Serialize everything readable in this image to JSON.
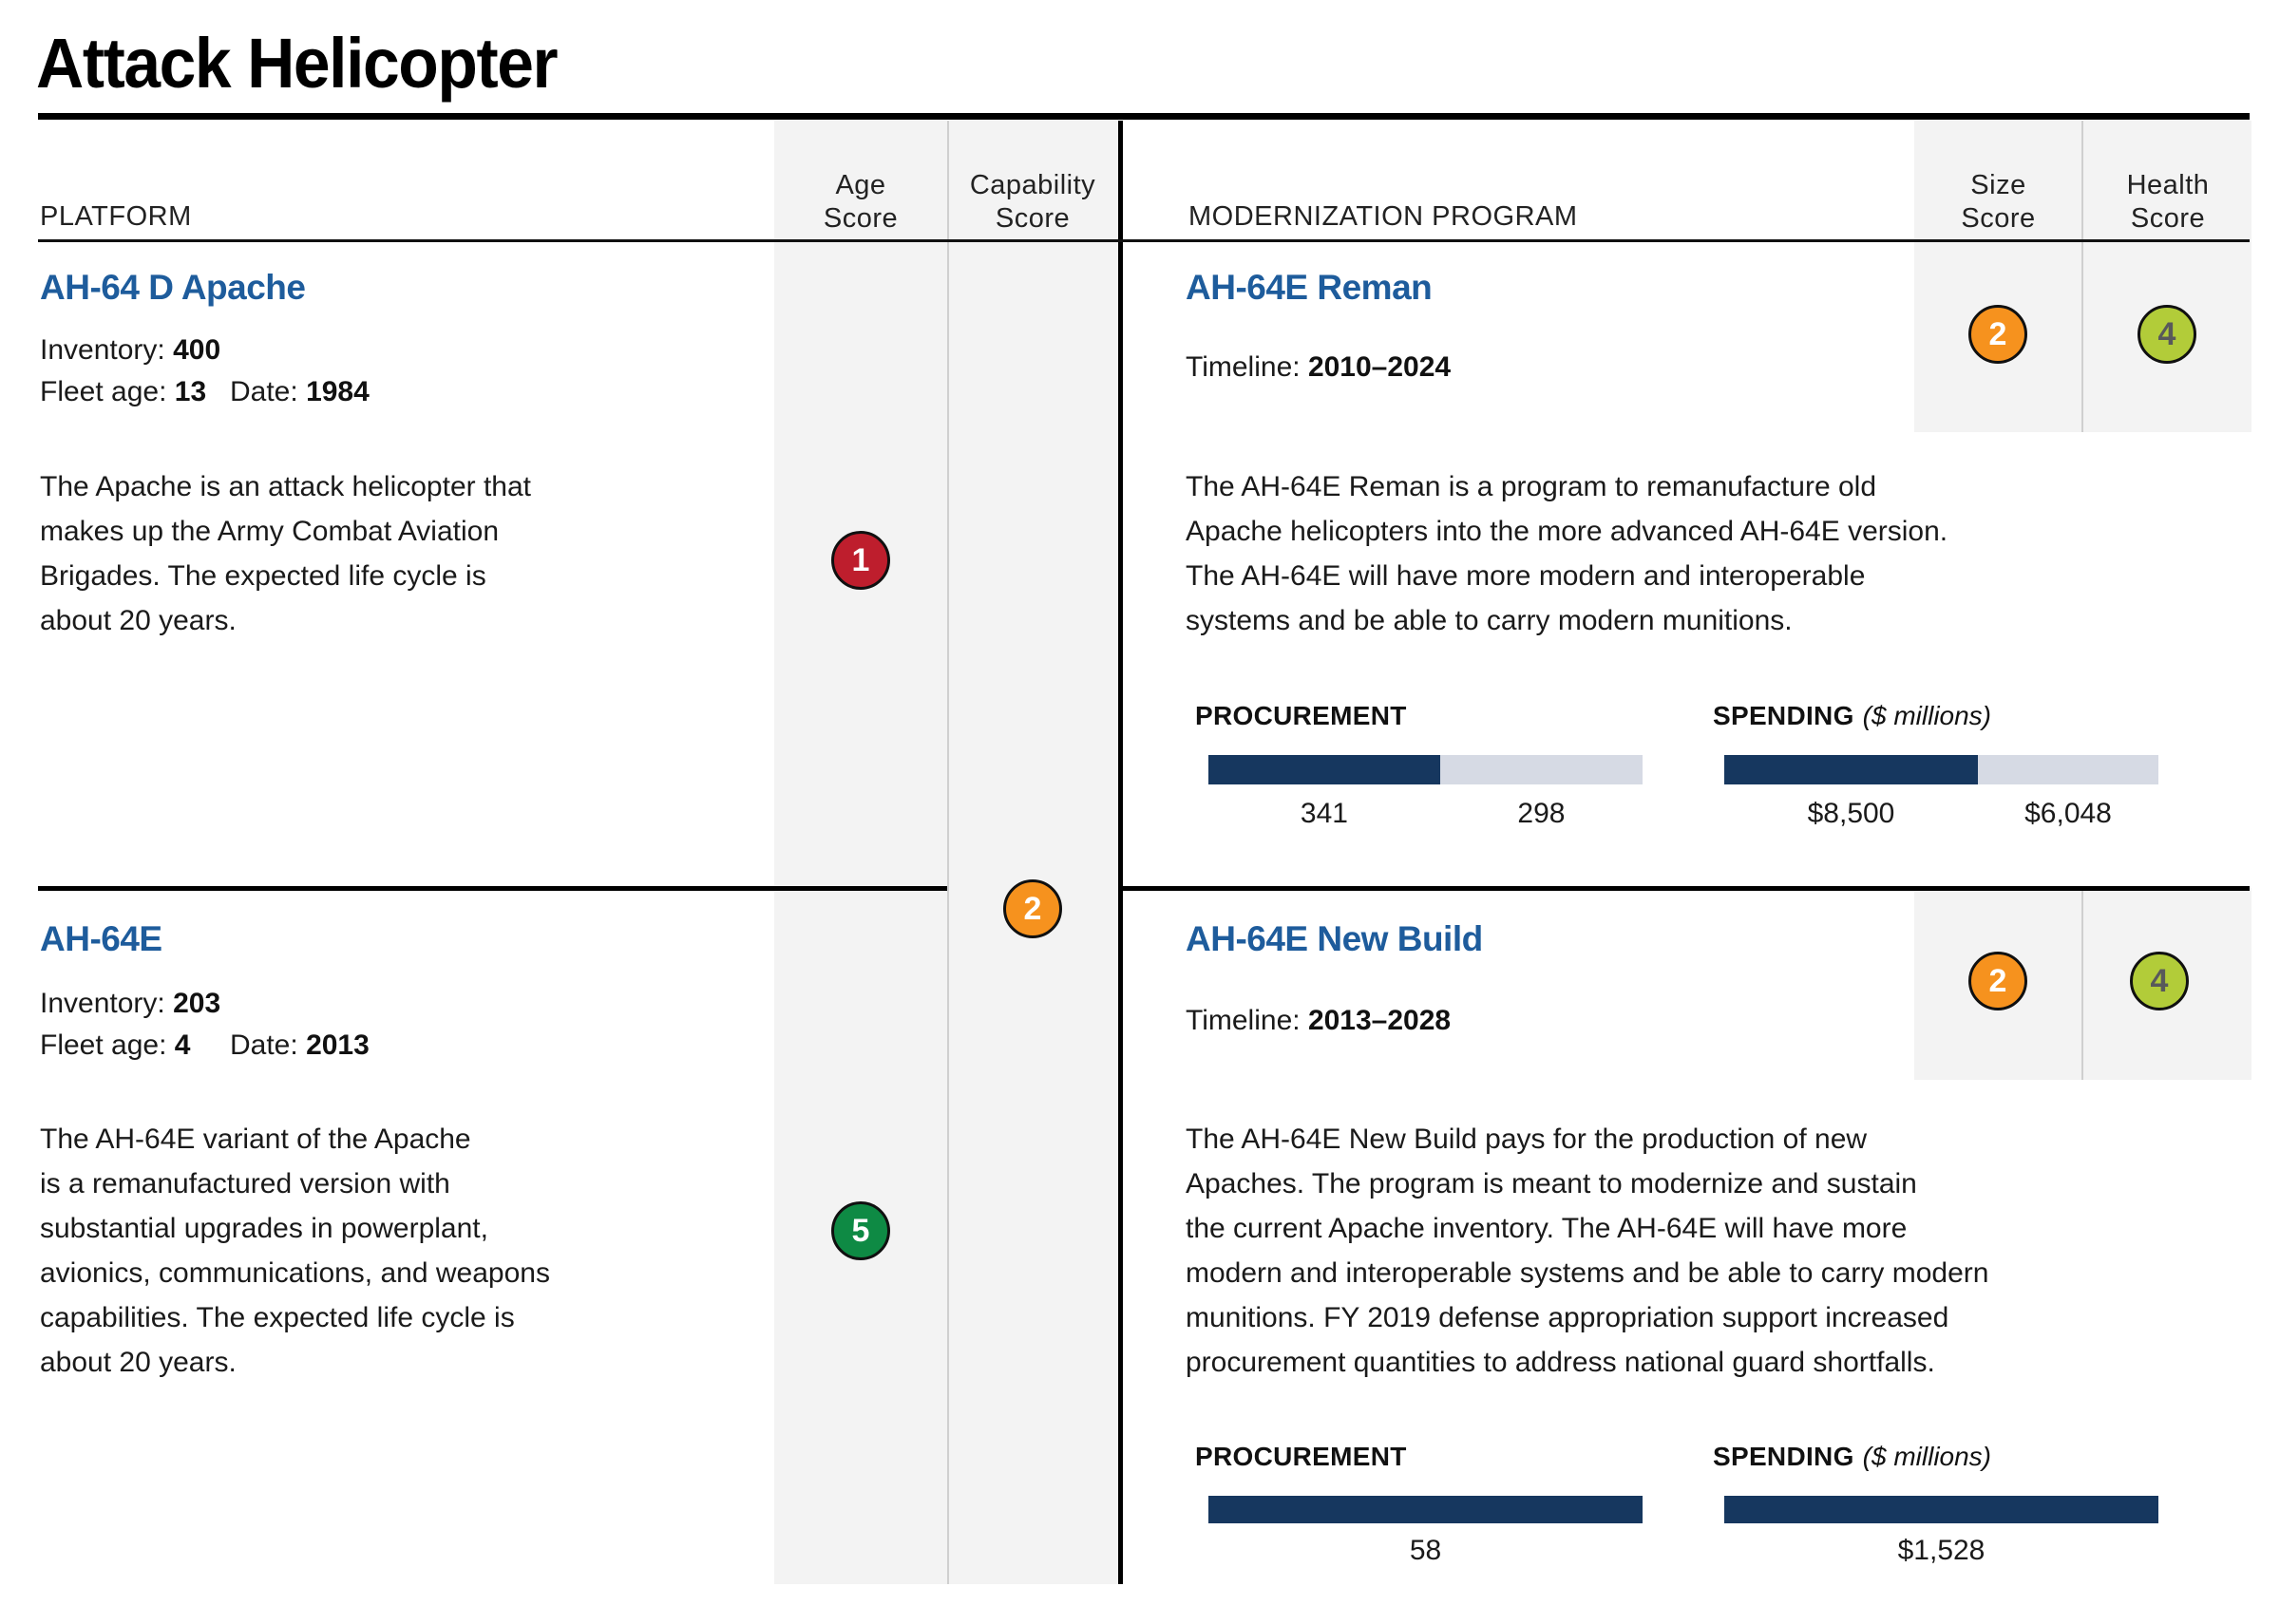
{
  "title": "Attack Helicopter",
  "header": {
    "platform": "PLATFORM",
    "age_score": [
      "Age",
      "Score"
    ],
    "capability_score": [
      "Capability",
      "Score"
    ],
    "modernization_program": "MODERNIZATION PROGRAM",
    "size_score": [
      "Size",
      "Score"
    ],
    "health_score": [
      "Health",
      "Score"
    ]
  },
  "colors": {
    "accent_blue": "#1E5C9C",
    "bar_fill_navy": "#16375F",
    "bar_rest_gray": "#D6DAE4",
    "score_red": "#BE1E2D",
    "score_orange": "#F6921E",
    "score_green": "#0E8A44",
    "score_yellow_green": "#B2CC39",
    "column_bg": "#F3F3F3"
  },
  "capability_score": {
    "value": "2",
    "bg": "#F6921E",
    "fg": "#FFFFFF"
  },
  "platforms": [
    {
      "name": "AH-64 D Apache",
      "inventory_label": "Inventory:",
      "inventory": "400",
      "fleet_age_label": "Fleet age:",
      "fleet_age": "13",
      "date_label": "Date:",
      "date": "1984",
      "description": [
        "The Apache is an attack helicopter that",
        "makes up the Army Combat Aviation",
        "Brigades. The expected life cycle is",
        "about 20 years."
      ],
      "age_score": {
        "value": "1",
        "bg": "#BE1E2D",
        "fg": "#FFFFFF"
      }
    },
    {
      "name": "AH-64E",
      "inventory_label": "Inventory:",
      "inventory": "203",
      "fleet_age_label": "Fleet age:",
      "fleet_age": "4",
      "date_label": "Date:",
      "date": "2013",
      "description": [
        "The AH-64E variant of the Apache",
        "is a remanufactured version with",
        "substantial upgrades in powerplant,",
        "avionics, communications, and weapons",
        "capabilities. The expected life cycle is",
        "about 20 years."
      ],
      "age_score": {
        "value": "5",
        "bg": "#0E8A44",
        "fg": "#FFFFFF"
      }
    }
  ],
  "programs": [
    {
      "name": "AH-64E Reman",
      "timeline_label": "Timeline:",
      "timeline": "2010–2024",
      "description": [
        "The AH-64E Reman is a program to remanufacture old",
        "Apache helicopters into the more advanced AH-64E version.",
        "The AH-64E will have more modern and interoperable",
        "systems and be able to carry modern munitions."
      ],
      "size_score": {
        "value": "2",
        "bg": "#F6921E",
        "fg": "#FFFFFF"
      },
      "health_score": {
        "value": "4",
        "bg": "#B2CC39",
        "fg": "#58595B"
      },
      "procurement": {
        "label": "PROCUREMENT",
        "filled_label": "341",
        "remaining_label": "298",
        "filled_value": 341,
        "remaining_value": 298
      },
      "spending": {
        "label": "SPENDING",
        "unit": "($ millions)",
        "filled_label": "$8,500",
        "remaining_label": "$6,048",
        "filled_value": 8500,
        "remaining_value": 6048
      }
    },
    {
      "name": "AH-64E New Build",
      "timeline_label": "Timeline:",
      "timeline": "2013–2028",
      "description": [
        "The AH-64E New Build pays for the production of new",
        "Apaches. The program is meant to modernize and sustain",
        "the current Apache inventory. The AH-64E will have more",
        "modern and interoperable systems and be able to carry modern",
        "munitions. FY 2019 defense appropriation support increased",
        "procurement quantities to address national guard shortfalls."
      ],
      "size_score": {
        "value": "2",
        "bg": "#F6921E",
        "fg": "#FFFFFF"
      },
      "health_score": {
        "value": "4",
        "bg": "#B2CC39",
        "fg": "#58595B"
      },
      "procurement": {
        "label": "PROCUREMENT",
        "filled_label": "58",
        "filled_value": 58,
        "remaining_value": 0
      },
      "spending": {
        "label": "SPENDING",
        "unit": "($ millions)",
        "filled_label": "$1,528",
        "filled_value": 1528,
        "remaining_value": 0
      }
    }
  ],
  "chart_data": [
    {
      "type": "bar",
      "title": "AH-64E Reman PROCUREMENT",
      "segments": [
        {
          "label": "341",
          "value": 341
        },
        {
          "label": "298",
          "value": 298
        }
      ]
    },
    {
      "type": "bar",
      "title": "AH-64E Reman SPENDING ($ millions)",
      "segments": [
        {
          "label": "$8,500",
          "value": 8500
        },
        {
          "label": "$6,048",
          "value": 6048
        }
      ]
    },
    {
      "type": "bar",
      "title": "AH-64E New Build PROCUREMENT",
      "segments": [
        {
          "label": "58",
          "value": 58
        }
      ]
    },
    {
      "type": "bar",
      "title": "AH-64E New Build SPENDING ($ millions)",
      "segments": [
        {
          "label": "$1,528",
          "value": 1528
        }
      ]
    }
  ]
}
